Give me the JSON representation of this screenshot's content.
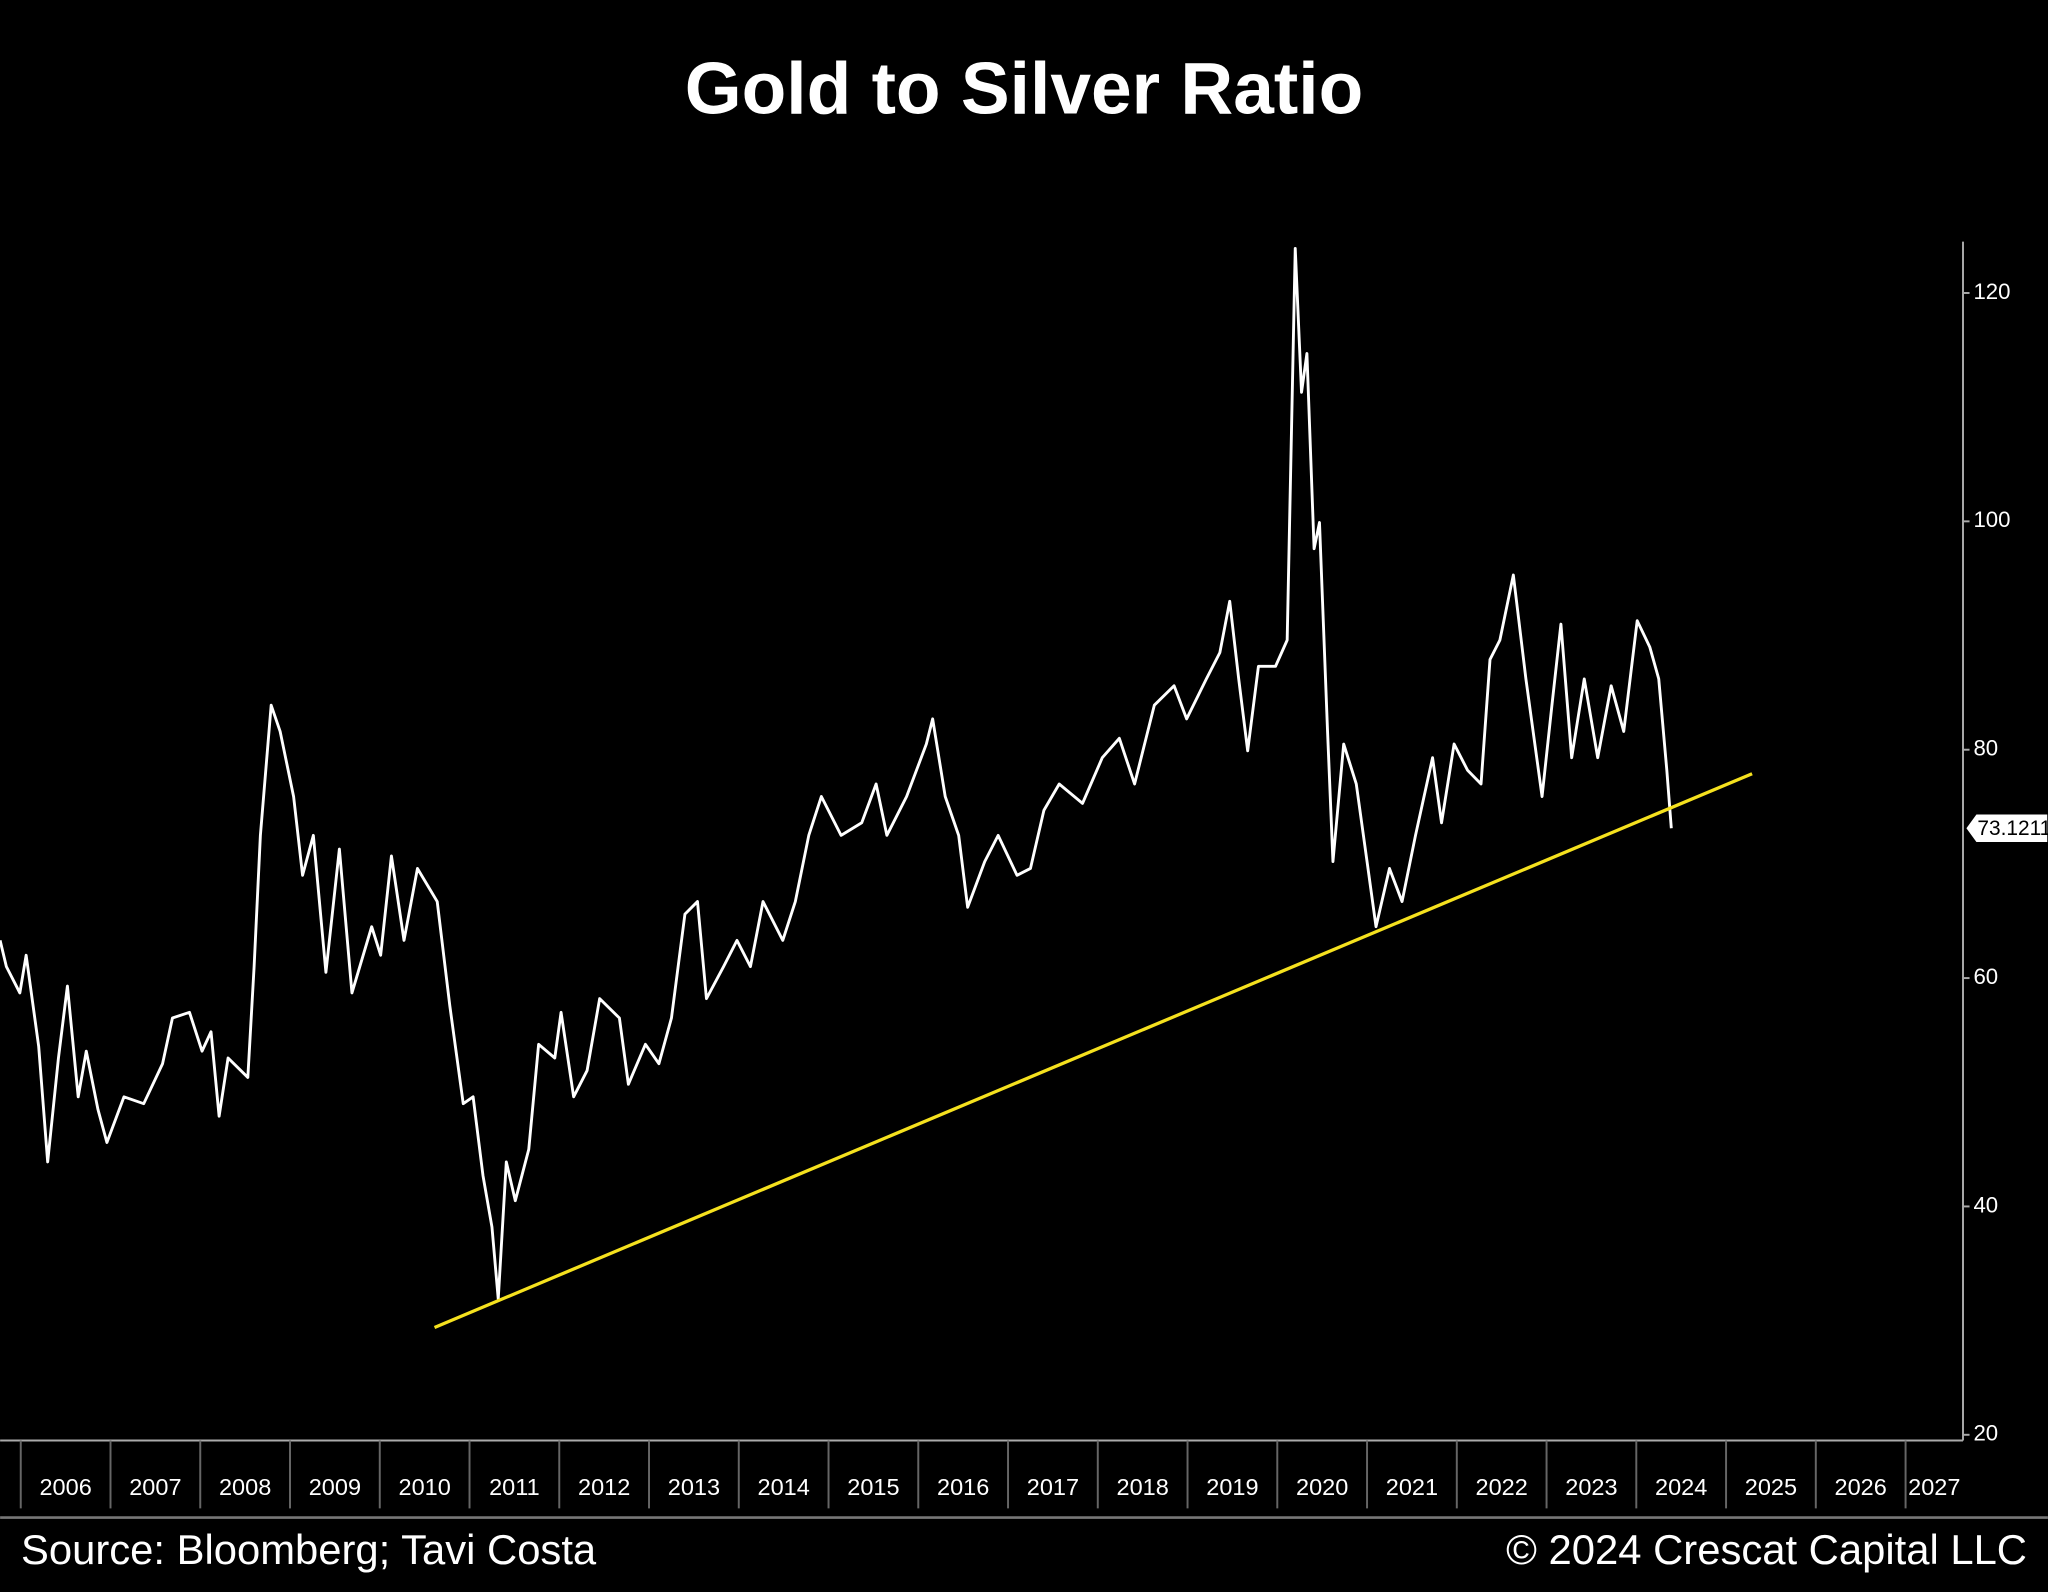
{
  "chart_data": {
    "type": "line",
    "title": "Gold to Silver Ratio",
    "source": "Source: Bloomberg; Tavi Costa",
    "copyright": "© 2024 Crescat Capital LLC",
    "xlim": [
      2005.77,
      2027.64
    ],
    "xticks": [
      2006,
      2007,
      2008,
      2009,
      2010,
      2011,
      2012,
      2013,
      2014,
      2015,
      2016,
      2017,
      2018,
      2019,
      2020,
      2021,
      2022,
      2023,
      2024,
      2025,
      2026,
      2027
    ],
    "ylim": [
      19.5,
      124.5
    ],
    "yticks": [
      20,
      40,
      60,
      80,
      100,
      120
    ],
    "y_axis_side": "right",
    "series": [
      {
        "color": "#ffffff",
        "x": [
          2005.77,
          2005.84,
          2005.99,
          2006.06,
          2006.2,
          2006.3,
          2006.42,
          2006.52,
          2006.64,
          2006.73,
          2006.86,
          2006.96,
          2007.15,
          2007.37,
          2007.58,
          2007.69,
          2007.88,
          2008.02,
          2008.12,
          2008.21,
          2008.31,
          2008.53,
          2008.6,
          2008.67,
          2008.79,
          2008.89,
          2009.04,
          2009.14,
          2009.26,
          2009.4,
          2009.55,
          2009.69,
          2009.91,
          2010.01,
          2010.13,
          2010.27,
          2010.42,
          2010.64,
          2010.78,
          2010.93,
          2011.04,
          2011.15,
          2011.25,
          2011.32,
          2011.41,
          2011.51,
          2011.66,
          2011.77,
          2011.95,
          2012.02,
          2012.16,
          2012.31,
          2012.45,
          2012.67,
          2012.77,
          2012.96,
          2013.11,
          2013.25,
          2013.4,
          2013.54,
          2013.64,
          2013.83,
          2013.98,
          2014.13,
          2014.27,
          2014.49,
          2014.63,
          2014.78,
          2014.92,
          2015.14,
          2015.37,
          2015.53,
          2015.65,
          2015.87,
          2016.09,
          2016.16,
          2016.3,
          2016.45,
          2016.55,
          2016.74,
          2016.89,
          2017.1,
          2017.25,
          2017.4,
          2017.57,
          2017.83,
          2018.05,
          2018.24,
          2018.41,
          2018.63,
          2018.85,
          2018.99,
          2019.21,
          2019.36,
          2019.47,
          2019.57,
          2019.67,
          2019.79,
          2019.98,
          2020.11,
          2020.2,
          2020.27,
          2020.33,
          2020.41,
          2020.47,
          2020.56,
          2020.62,
          2020.74,
          2020.88,
          2021.0,
          2021.1,
          2021.25,
          2021.39,
          2021.54,
          2021.73,
          2021.83,
          2021.97,
          2022.12,
          2022.27,
          2022.37,
          2022.48,
          2022.63,
          2022.77,
          2022.95,
          2023.06,
          2023.16,
          2023.28,
          2023.42,
          2023.57,
          2023.72,
          2023.86,
          2024.01,
          2024.15,
          2024.25,
          2024.34,
          2024.39
        ],
        "values": [
          63.3,
          61,
          58.7,
          62,
          54,
          43.9,
          53,
          59.3,
          49.6,
          53.6,
          48.5,
          45.6,
          49.6,
          49,
          52.5,
          56.5,
          57,
          53.6,
          55.3,
          47.9,
          53,
          51.3,
          61,
          72.5,
          83.9,
          81.6,
          75.9,
          69,
          72.5,
          60.5,
          71.3,
          58.7,
          64.5,
          62,
          70.7,
          63.3,
          69.6,
          66.7,
          57.6,
          49,
          49.6,
          42.7,
          38.2,
          31.9,
          43.9,
          40.5,
          45,
          54.2,
          53,
          57,
          49.6,
          51.9,
          58.2,
          56.5,
          50.7,
          54.2,
          52.5,
          56.5,
          65.6,
          66.7,
          58.2,
          61,
          63.3,
          61,
          66.7,
          63.3,
          66.7,
          72.5,
          75.9,
          72.5,
          73.6,
          77,
          72.5,
          75.9,
          80.5,
          82.7,
          75.9,
          72.5,
          66.2,
          70.2,
          72.5,
          69,
          69.6,
          74.7,
          77,
          75.3,
          79.3,
          81,
          77,
          83.9,
          85.6,
          82.7,
          86.2,
          88.5,
          93,
          86.2,
          79.9,
          87.3,
          87.3,
          89.6,
          123.9,
          111.3,
          114.7,
          97.6,
          99.9,
          81.6,
          70.2,
          80.5,
          77,
          70.2,
          64.5,
          69.6,
          66.7,
          72.5,
          79.3,
          73.6,
          80.5,
          78.2,
          77,
          87.9,
          89.6,
          95.3,
          86.2,
          75.9,
          83.9,
          91,
          79.3,
          86.2,
          79.3,
          85.6,
          81.6,
          91.3,
          89,
          86.2,
          78.2,
          73.1211
        ]
      }
    ],
    "trendline": {
      "color": "#f5e11e",
      "x": [
        2010.61,
        2025.29
      ],
      "values": [
        29.4,
        77.9
      ]
    }
  }
}
